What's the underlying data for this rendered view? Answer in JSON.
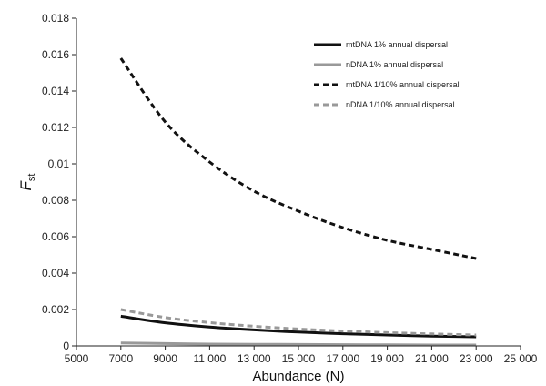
{
  "chart_data": {
    "type": "line",
    "xlabel": "Abundance (N)",
    "ylabel_main": "F",
    "ylabel_sub": "st",
    "xlim": [
      5000,
      25000
    ],
    "ylim": [
      0,
      0.018
    ],
    "x_ticks": [
      5000,
      7000,
      9000,
      11000,
      13000,
      15000,
      17000,
      19000,
      21000,
      23000,
      25000
    ],
    "x_tick_labels": [
      "5000",
      "7000",
      "9000",
      "11 000",
      "13 000",
      "15 000",
      "17 000",
      "19 000",
      "21 000",
      "23 000",
      "25 000"
    ],
    "y_ticks": [
      0,
      0.002,
      0.004,
      0.006,
      0.008,
      0.01,
      0.012,
      0.014,
      0.016,
      0.018
    ],
    "y_tick_labels": [
      "0",
      "0.002",
      "0.004",
      "0.006",
      "0.008",
      "0.01",
      "0.012",
      "0.014",
      "0.016",
      "0.018"
    ],
    "grid": false,
    "legend_position": "top-right",
    "x": [
      7000,
      9000,
      11000,
      13000,
      15000,
      17000,
      19000,
      21000,
      23000
    ],
    "series": [
      {
        "name": "mtDNA 1% annual dispersal",
        "color": "#111111",
        "dash": "solid",
        "values": [
          0.00163,
          0.00127,
          0.00104,
          0.00088,
          0.00076,
          0.00067,
          0.0006,
          0.00054,
          0.0005
        ]
      },
      {
        "name": "nDNA 1% annual dispersal",
        "color": "#999999",
        "dash": "solid",
        "values": [
          0.00016,
          0.00013,
          0.0001,
          9e-05,
          8e-05,
          7e-05,
          6e-05,
          5e-05,
          5e-05
        ]
      },
      {
        "name": "mtDNA 1/10% annual dispersal",
        "color": "#111111",
        "dash": "dashed",
        "values": [
          0.0158,
          0.0123,
          0.0101,
          0.0085,
          0.0074,
          0.0065,
          0.0058,
          0.0053,
          0.0048
        ]
      },
      {
        "name": "nDNA 1/10% annual dispersal",
        "color": "#999999",
        "dash": "dashed",
        "values": [
          0.002,
          0.00156,
          0.00128,
          0.00108,
          0.00093,
          0.00082,
          0.00073,
          0.00066,
          0.0006
        ]
      }
    ]
  }
}
